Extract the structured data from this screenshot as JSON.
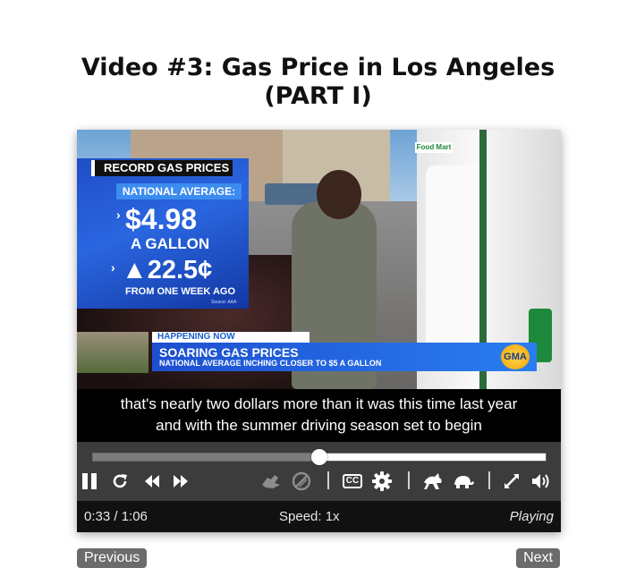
{
  "page": {
    "title_line1": "Video #3: Gas Price in Los Angeles",
    "title_line2": "(PART I)"
  },
  "video": {
    "graphic": {
      "header": "RECORD GAS PRICES",
      "label": "NATIONAL AVERAGE:",
      "price": "$4.98",
      "unit": "A GALLON",
      "change": "▲22.5¢",
      "period": "FROM ONE WEEK AGO",
      "source": "Source: AAA"
    },
    "lower_third": {
      "kicker": "HAPPENING NOW",
      "headline": "SOARING GAS PRICES",
      "subhead": "NATIONAL AVERAGE INCHING CLOSER TO $5 A GALLON",
      "logo": "GMA"
    },
    "signs": {
      "store": "Food Mart"
    },
    "captions": {
      "line1": "that's nearly two dollars more than it was this time last year",
      "line2": "and with the summer driving season set to begin"
    }
  },
  "player": {
    "progress_fraction": 0.5,
    "controls": [
      {
        "name": "pause-icon",
        "enabled": true
      },
      {
        "name": "restart-icon",
        "enabled": true
      },
      {
        "name": "rewind-icon",
        "enabled": true
      },
      {
        "name": "forward-icon",
        "enabled": true
      },
      {
        "name": "sign-language-icon",
        "enabled": false
      },
      {
        "name": "audio-description-icon",
        "enabled": false
      },
      {
        "name": "captions-icon",
        "enabled": true
      },
      {
        "name": "settings-icon",
        "enabled": true
      },
      {
        "name": "faster-icon",
        "enabled": true
      },
      {
        "name": "slower-icon",
        "enabled": true
      },
      {
        "name": "fullscreen-icon",
        "enabled": true
      },
      {
        "name": "volume-icon",
        "enabled": true
      }
    ],
    "captions_label": "CC",
    "status": {
      "time": "0:33 / 1:06",
      "speed": "Speed: 1x",
      "state": "Playing"
    }
  },
  "nav": {
    "previous": "Previous",
    "next": "Next"
  },
  "colors": {
    "controls_bg": "#3c3c3c",
    "status_bg": "#111111",
    "nav_button": "#6b6b6b"
  }
}
